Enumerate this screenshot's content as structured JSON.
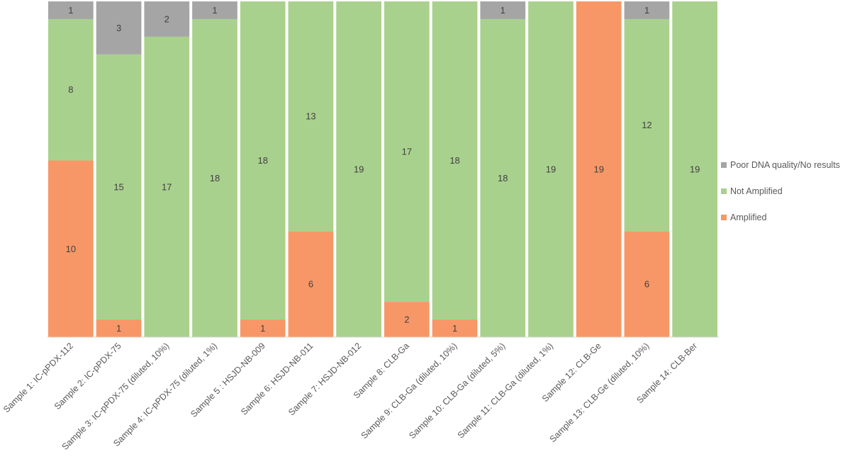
{
  "chart_data": {
    "type": "bar",
    "stacked": true,
    "title": "",
    "xlabel": "",
    "ylabel": "",
    "ylim": [
      0,
      19
    ],
    "grid": false,
    "legend_position": "right",
    "categories": [
      "Sample 1: IC-pPDX-112",
      "Sample 2: IC-pPDX-75",
      "Sample 3: IC-pPDX-75 (diluted, 10%)",
      "Sample 4: IC-pPDX-75 (diluted, 1%)",
      "Sample 5 : HSJD-NB-009",
      "Sample 6: HSJD-NB-011",
      "Sample 7: HSJD-NB-012",
      "Sample 8: CLB-Ga",
      "Sample 9: CLB-Ga (diluted, 10%)",
      "Sample 10: CLB-Ga (diluted, 5%)",
      "Sample 11: CLB-Ga (diluted, 1%)",
      "Sample 12: CLB-Ge",
      "Sample 13: CLB-Ge (diluted, 10%)",
      "Sample 14: CLB-Ber"
    ],
    "series": [
      {
        "name": "Amplified",
        "color": "#F79767",
        "values": [
          10,
          1,
          0,
          0,
          1,
          6,
          0,
          2,
          1,
          0,
          0,
          19,
          6,
          0
        ]
      },
      {
        "name": "Not Amplified",
        "color": "#A9D18E",
        "values": [
          8,
          15,
          17,
          18,
          18,
          13,
          19,
          17,
          18,
          18,
          19,
          0,
          12,
          19
        ]
      },
      {
        "name": "Poor DNA quality/No results",
        "color": "#A5A5A5",
        "values": [
          1,
          3,
          2,
          1,
          0,
          0,
          0,
          0,
          0,
          1,
          0,
          0,
          1,
          0
        ]
      }
    ],
    "legend_order": [
      "Poor DNA quality/No results",
      "Not Amplified",
      "Amplified"
    ]
  }
}
